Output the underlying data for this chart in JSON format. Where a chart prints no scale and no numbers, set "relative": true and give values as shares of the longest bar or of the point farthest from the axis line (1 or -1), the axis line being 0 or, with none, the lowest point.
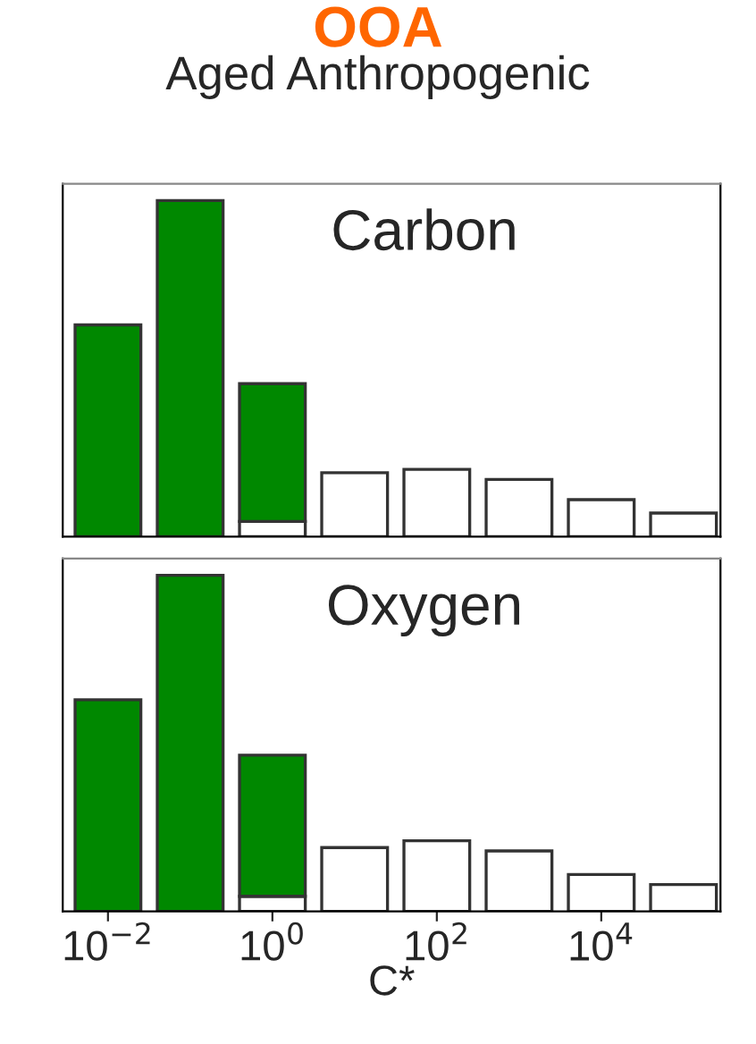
{
  "chart_data": [
    {
      "type": "bar",
      "title": "OOA",
      "subtitle": "Aged Anthropogenic",
      "annotations": [
        "Carbon"
      ],
      "relative": true,
      "stacked": true,
      "grid": false,
      "categories": [
        null,
        null,
        null,
        null,
        null,
        null,
        null,
        null
      ],
      "series": [
        {
          "color": "#ffffff",
          "values": [
            null,
            null,
            0.045,
            0.19,
            0.2,
            0.17,
            0.11,
            0.07
          ]
        },
        {
          "color": "#008800",
          "values": [
            0.63,
            1.0,
            0.41,
            null,
            null,
            null,
            null,
            null
          ]
        }
      ]
    },
    {
      "type": "bar",
      "annotations": [
        "Oxygen"
      ],
      "xlabel": "C*",
      "relative": true,
      "stacked": true,
      "tick_labels": "x",
      "grid": false,
      "categories": [
        "10$^{−2}$",
        null,
        "10$^{0}$",
        null,
        "10$^{2}$",
        null,
        "10$^{4}$",
        null
      ],
      "series": [
        {
          "color": "#ffffff",
          "values": [
            null,
            null,
            0.045,
            0.19,
            0.21,
            0.18,
            0.11,
            0.08
          ]
        },
        {
          "color": "#008800",
          "values": [
            0.63,
            1.0,
            0.42,
            null,
            null,
            null,
            null,
            null
          ]
        }
      ]
    }
  ]
}
